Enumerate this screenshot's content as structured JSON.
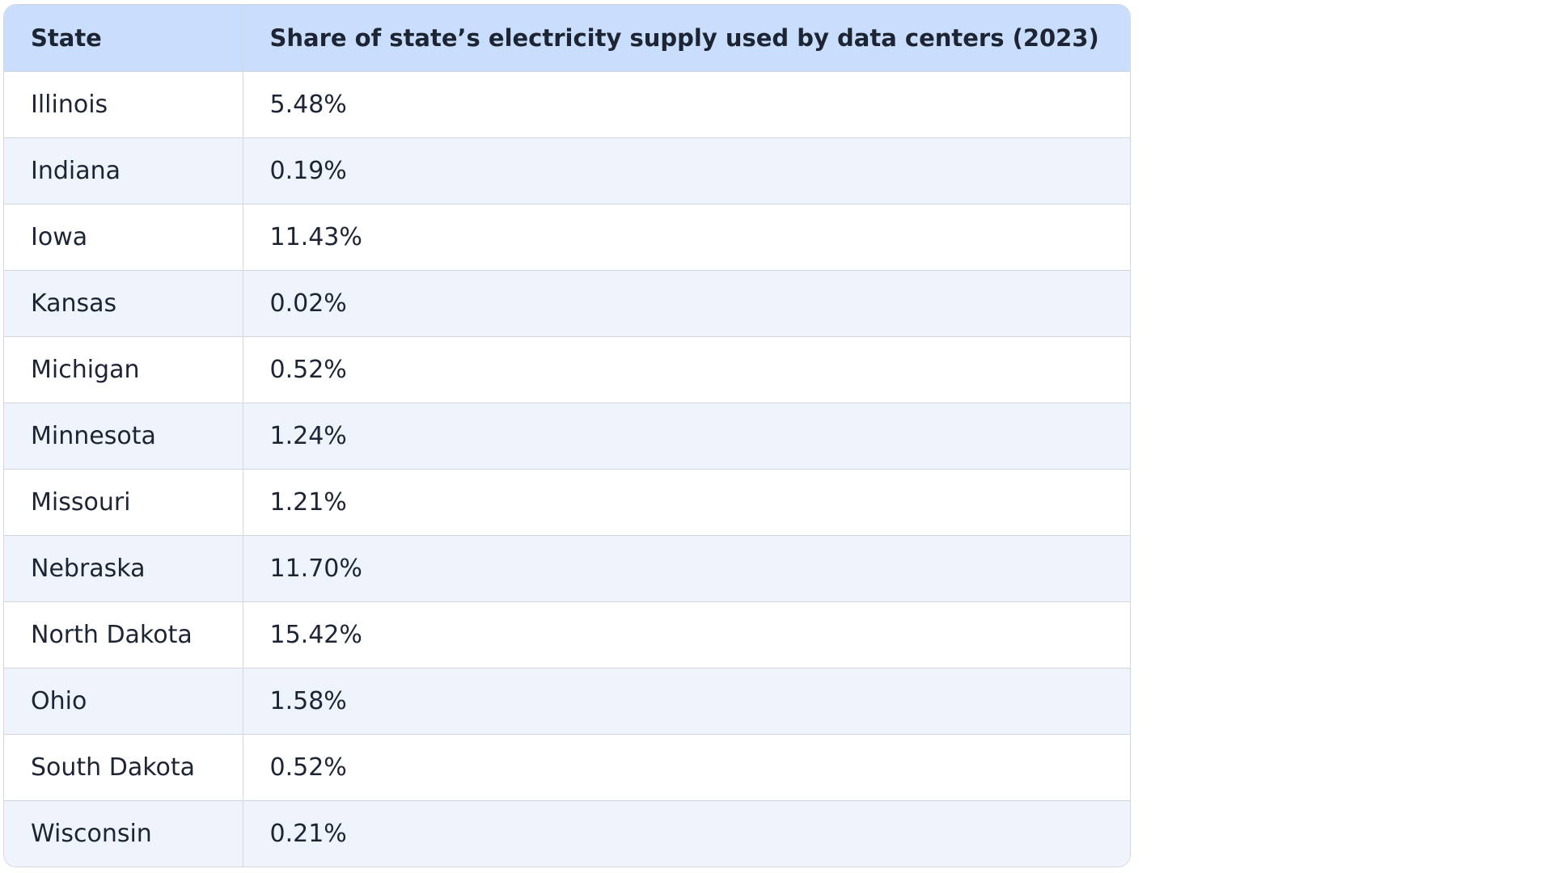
{
  "table": {
    "header": [
      "State",
      "Share of state’s electricity supply used by data centers (2023)"
    ],
    "rows": [
      [
        "Illinois",
        "5.48%"
      ],
      [
        "Indiana",
        "0.19%"
      ],
      [
        "Iowa",
        "11.43%"
      ],
      [
        "Kansas",
        "0.02%"
      ],
      [
        "Michigan",
        "0.52%"
      ],
      [
        "Minnesota",
        "1.24%"
      ],
      [
        "Missouri",
        "1.21%"
      ],
      [
        "Nebraska",
        "11.70%"
      ],
      [
        "North Dakota",
        "15.42%"
      ],
      [
        "Ohio",
        "1.58%"
      ],
      [
        "South Dakota",
        "0.52%"
      ],
      [
        "Wisconsin",
        "0.21%"
      ]
    ]
  }
}
